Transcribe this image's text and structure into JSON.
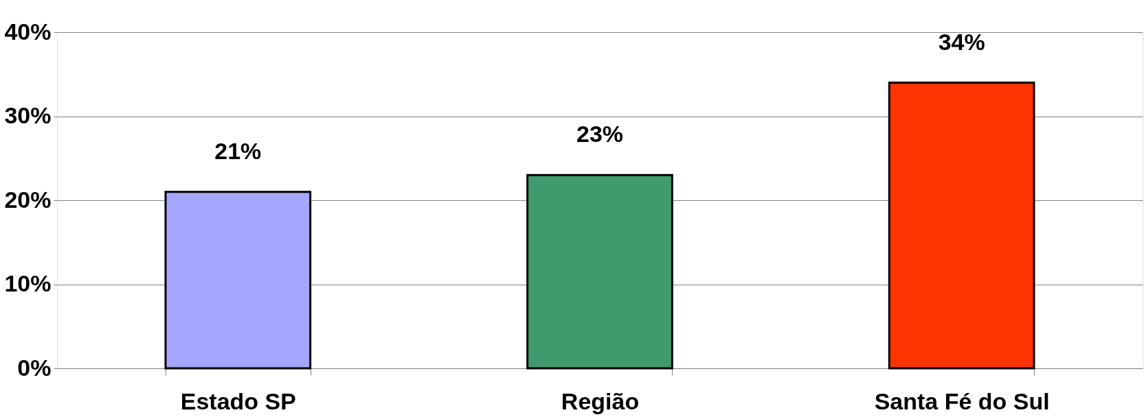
{
  "chart_data": {
    "type": "bar",
    "categories": [
      "Estado SP",
      "Região",
      "Santa Fé do Sul"
    ],
    "values": [
      21,
      23,
      34
    ],
    "colors": [
      "#a6a6ff",
      "#3f9b6e",
      "#ff3300"
    ],
    "value_labels": [
      "21%",
      "23%",
      "34%"
    ],
    "ylim": [
      0,
      40
    ],
    "yticks": [
      {
        "value": 0,
        "label": "0%"
      },
      {
        "value": 10,
        "label": "10%"
      },
      {
        "value": 20,
        "label": "20%"
      },
      {
        "value": 30,
        "label": "30%"
      },
      {
        "value": 40,
        "label": "40%"
      }
    ],
    "grid": "y"
  }
}
